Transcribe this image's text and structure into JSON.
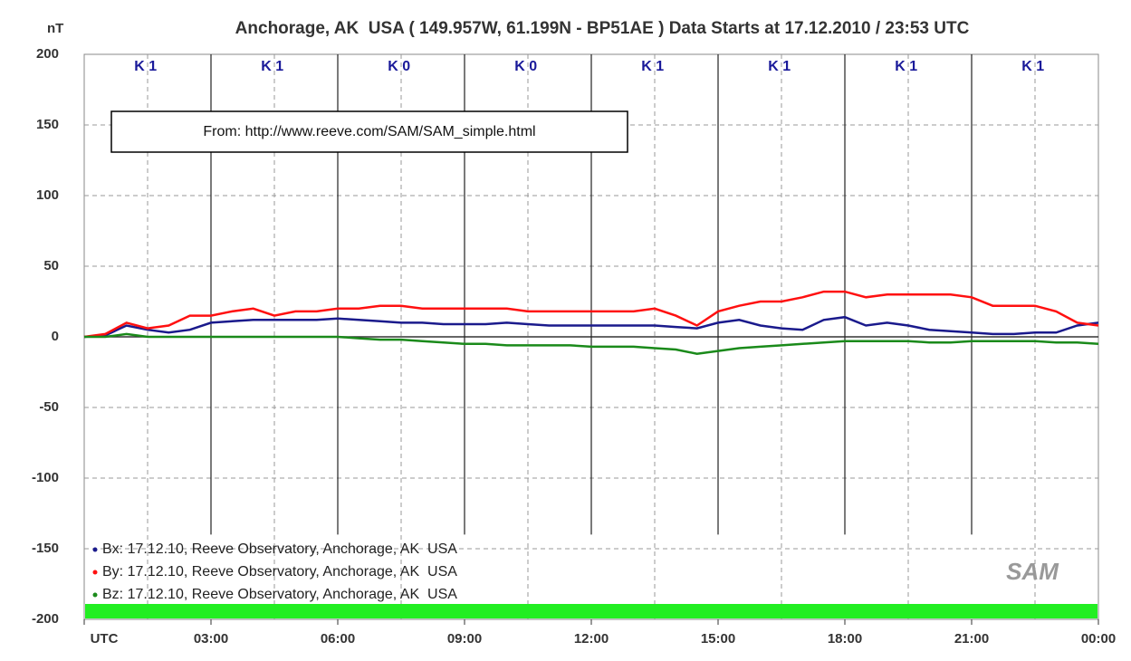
{
  "chart_data": {
    "type": "line",
    "title": "Anchorage, AK  USA ( 149.957W, 61.199N - BP51AE ) Data Starts at 17.12.2010 / 23:53 UTC",
    "y_label": "nT",
    "annotation": "From: http://www.reeve.com/SAM/SAM_simple.html",
    "k_indices": [
      "K 1",
      "K 1",
      "K 0",
      "K 0",
      "K 1",
      "K 1",
      "K 1",
      "K 1"
    ],
    "logo": "SAM",
    "x": [
      0,
      0.5,
      1,
      1.5,
      2,
      2.5,
      3,
      3.5,
      4,
      4.5,
      5,
      5.5,
      6,
      6.5,
      7,
      7.5,
      8,
      8.5,
      9,
      9.5,
      10,
      10.5,
      11,
      11.5,
      12,
      12.5,
      13,
      13.5,
      14,
      14.5,
      15,
      15.5,
      16,
      16.5,
      17,
      17.5,
      18,
      18.5,
      19,
      19.5,
      20,
      20.5,
      21,
      21.5,
      22,
      22.5,
      23,
      23.5,
      24
    ],
    "series": [
      {
        "name": "Bx: 17.12.10, Reeve Observatory, Anchorage, AK  USA",
        "color": "#1a1a8c",
        "values": [
          0,
          1,
          8,
          5,
          3,
          5,
          10,
          11,
          12,
          12,
          12,
          12,
          13,
          12,
          11,
          10,
          10,
          9,
          9,
          9,
          10,
          9,
          8,
          8,
          8,
          8,
          8,
          8,
          7,
          6,
          10,
          12,
          8,
          6,
          5,
          12,
          14,
          8,
          10,
          8,
          5,
          4,
          3,
          2,
          2,
          3,
          3,
          8,
          10
        ]
      },
      {
        "name": "By: 17.12.10, Reeve Observatory, Anchorage, AK  USA",
        "color": "#ff1010",
        "values": [
          0,
          2,
          10,
          6,
          8,
          15,
          15,
          18,
          20,
          15,
          18,
          18,
          20,
          20,
          22,
          22,
          20,
          20,
          20,
          20,
          20,
          18,
          18,
          18,
          18,
          18,
          18,
          20,
          15,
          8,
          18,
          22,
          25,
          25,
          28,
          32,
          32,
          28,
          30,
          30,
          30,
          30,
          28,
          22,
          22,
          22,
          18,
          10,
          8
        ]
      },
      {
        "name": "Bz: 17.12.10, Reeve Observatory, Anchorage, AK  USA",
        "color": "#1a8a1a",
        "values": [
          0,
          0,
          2,
          0,
          0,
          0,
          0,
          0,
          0,
          0,
          0,
          0,
          0,
          -1,
          -2,
          -2,
          -3,
          -4,
          -5,
          -5,
          -6,
          -6,
          -6,
          -6,
          -7,
          -7,
          -7,
          -8,
          -9,
          -12,
          -10,
          -8,
          -7,
          -6,
          -5,
          -4,
          -3,
          -3,
          -3,
          -3,
          -4,
          -4,
          -3,
          -3,
          -3,
          -3,
          -4,
          -4,
          -5
        ]
      }
    ],
    "xlim": [
      0,
      24
    ],
    "xticks": [
      {
        "value": 0,
        "label": "UTC"
      },
      {
        "value": 3,
        "label": "03:00"
      },
      {
        "value": 6,
        "label": "06:00"
      },
      {
        "value": 9,
        "label": "09:00"
      },
      {
        "value": 12,
        "label": "12:00"
      },
      {
        "value": 15,
        "label": "15:00"
      },
      {
        "value": 18,
        "label": "18:00"
      },
      {
        "value": 21,
        "label": "21:00"
      },
      {
        "value": 24,
        "label": "00:00"
      }
    ],
    "ylim": [
      -200,
      200
    ],
    "yticks": [
      200,
      150,
      100,
      50,
      0,
      -50,
      -100,
      -150,
      -200
    ],
    "grid": true,
    "legend": "lower left"
  }
}
